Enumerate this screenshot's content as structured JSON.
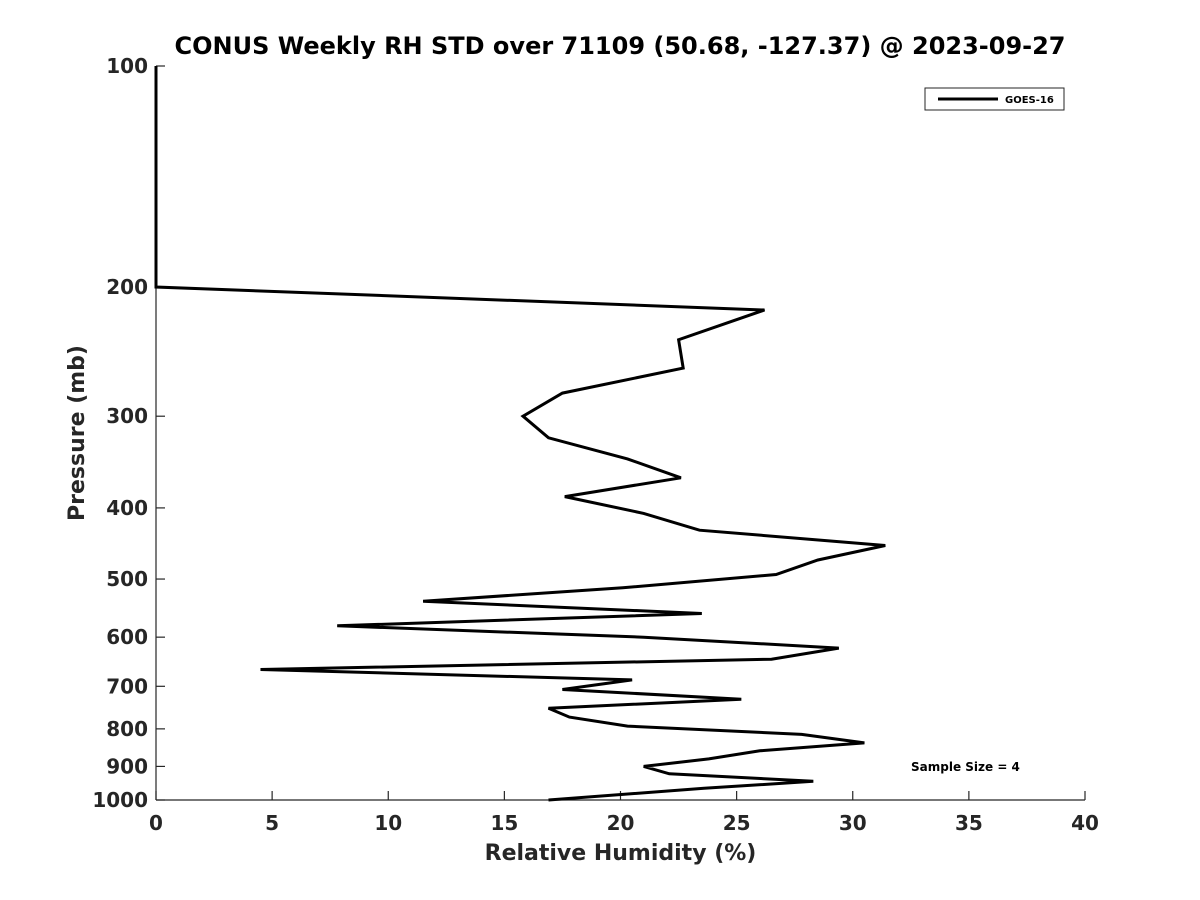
{
  "chart_data": {
    "type": "line",
    "title": "CONUS Weekly RH STD over 71109 (50.68, -127.37) @ 2023-09-27",
    "xlabel": "Relative Humidity (%)",
    "ylabel": "Pressure (mb)",
    "xlim": [
      0,
      40
    ],
    "ylim": [
      100,
      1000
    ],
    "y_scale": "log",
    "y_reversed": true,
    "x_ticks": [
      0,
      5,
      10,
      15,
      20,
      25,
      30,
      35,
      40
    ],
    "y_ticks": [
      100,
      200,
      300,
      400,
      500,
      600,
      700,
      800,
      900,
      1000
    ],
    "grid": false,
    "legend_position": "top-right",
    "series": [
      {
        "name": "GOES-16",
        "color": "#000000",
        "points": [
          {
            "x": 0.0,
            "y": 100
          },
          {
            "x": 0.0,
            "y": 200
          },
          {
            "x": 26.2,
            "y": 215
          },
          {
            "x": 22.5,
            "y": 236
          },
          {
            "x": 22.7,
            "y": 258
          },
          {
            "x": 17.5,
            "y": 279
          },
          {
            "x": 15.8,
            "y": 300
          },
          {
            "x": 16.9,
            "y": 321
          },
          {
            "x": 20.3,
            "y": 343
          },
          {
            "x": 22.6,
            "y": 364
          },
          {
            "x": 17.6,
            "y": 386
          },
          {
            "x": 21.0,
            "y": 407
          },
          {
            "x": 23.4,
            "y": 429
          },
          {
            "x": 31.4,
            "y": 450
          },
          {
            "x": 28.5,
            "y": 471
          },
          {
            "x": 26.7,
            "y": 493
          },
          {
            "x": 20.1,
            "y": 514
          },
          {
            "x": 11.5,
            "y": 536
          },
          {
            "x": 23.5,
            "y": 557
          },
          {
            "x": 7.8,
            "y": 579
          },
          {
            "x": 21.0,
            "y": 600
          },
          {
            "x": 29.4,
            "y": 621
          },
          {
            "x": 26.5,
            "y": 643
          },
          {
            "x": 4.5,
            "y": 664
          },
          {
            "x": 20.5,
            "y": 686
          },
          {
            "x": 17.5,
            "y": 707
          },
          {
            "x": 25.2,
            "y": 729
          },
          {
            "x": 16.9,
            "y": 750
          },
          {
            "x": 17.8,
            "y": 771
          },
          {
            "x": 20.3,
            "y": 793
          },
          {
            "x": 27.8,
            "y": 814
          },
          {
            "x": 30.5,
            "y": 836
          },
          {
            "x": 26.0,
            "y": 857
          },
          {
            "x": 23.8,
            "y": 879
          },
          {
            "x": 21.0,
            "y": 900
          },
          {
            "x": 22.1,
            "y": 921
          },
          {
            "x": 28.3,
            "y": 943
          },
          {
            "x": 23.6,
            "y": 964
          },
          {
            "x": 16.9,
            "y": 1000
          }
        ]
      }
    ],
    "annotations": [
      "Sample Size = 4"
    ]
  }
}
